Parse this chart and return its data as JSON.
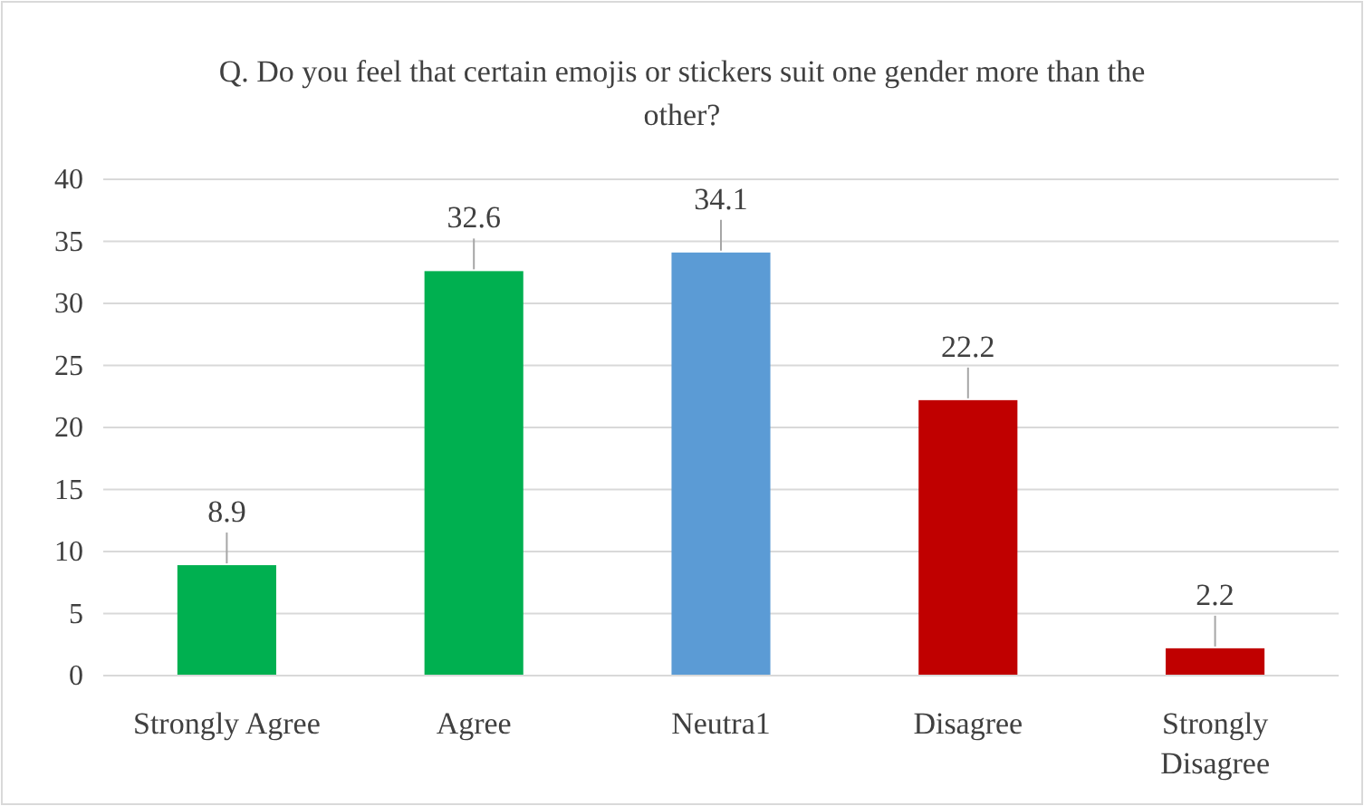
{
  "chart_data": {
    "type": "bar",
    "title": "Q. Do you feel that certain emojis or stickers suit one gender more than the other?",
    "categories": [
      "Strongly Agree",
      "Agree",
      "Neutra1",
      "Disagree",
      "Strongly Disagree"
    ],
    "values": [
      8.9,
      32.6,
      34.1,
      22.2,
      2.2
    ],
    "colors": [
      "#00b050",
      "#00b050",
      "#5b9bd5",
      "#c00000",
      "#c00000"
    ],
    "ylim": [
      0,
      40
    ],
    "yticks": [
      0,
      5,
      10,
      15,
      20,
      25,
      30,
      35,
      40
    ],
    "grid": "y",
    "data_labels": true
  }
}
